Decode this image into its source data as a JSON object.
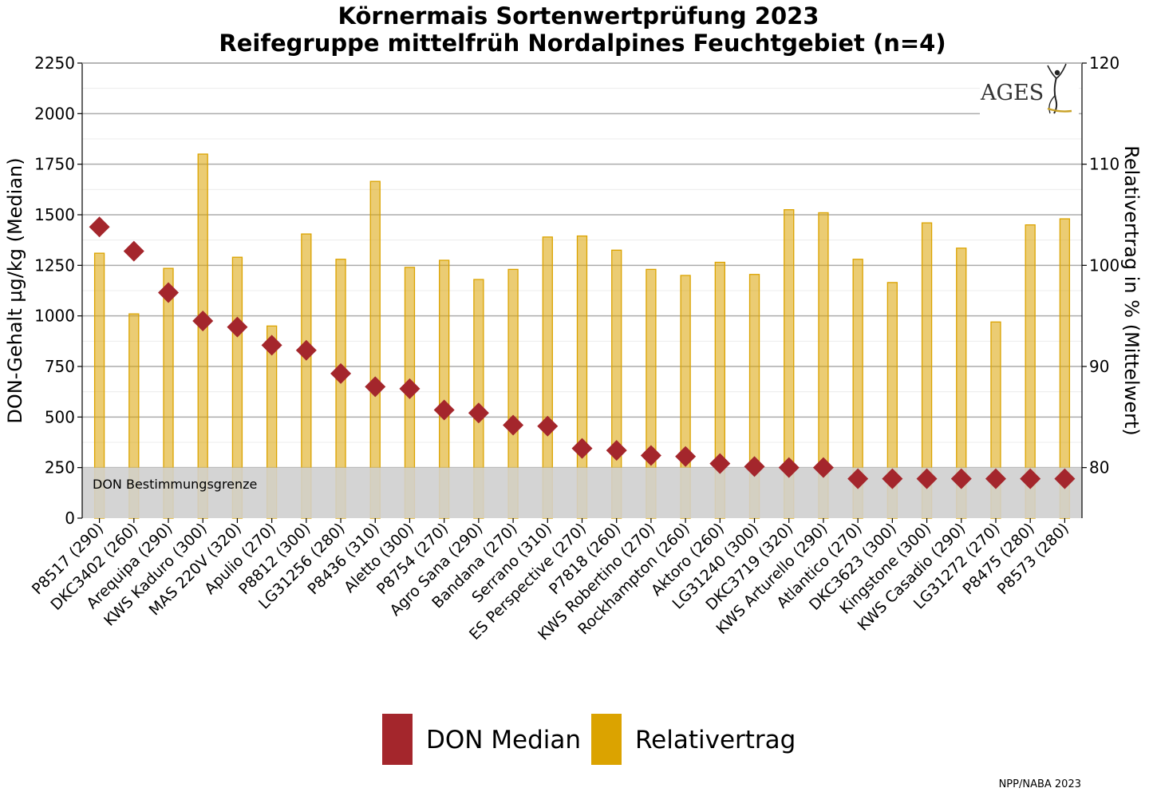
{
  "chart_data": {
    "type": "bar",
    "title": "Körnermais Sortenwertprüfung 2023",
    "subtitle": "Reifegruppe mittelfrüh Nordalpines Feuchtgebiet (n=4)",
    "ylabel": "DON-Gehalt µg/kg (Median)",
    "y2label": "Relativertrag in % (Mittelwert)",
    "ylim": [
      0,
      2250
    ],
    "y2lim": [
      75,
      120
    ],
    "yticks": [
      "0",
      "250",
      "500",
      "750",
      "1000",
      "1250",
      "1500",
      "1750",
      "2000",
      "2250"
    ],
    "y2ticks": [
      "80",
      "90",
      "100",
      "110",
      "120"
    ],
    "limit_band": {
      "label": "DON Bestimmungsgrenze",
      "value": 250
    },
    "categories": [
      "P8517 (290)",
      "DKC3402 (260)",
      "Arequipa (290)",
      "KWS Kaduro (300)",
      "MAS 220V (320)",
      "Apulio (270)",
      "P8812 (300)",
      "LG31256 (280)",
      "P8436 (310)",
      "Aletto (300)",
      "P8754 (270)",
      "Agro Sana (290)",
      "Bandana (270)",
      "Serrano (310)",
      "ES Perspective (270)",
      "P7818 (260)",
      "KWS Robertino (270)",
      "Rockhampton (260)",
      "Aktoro (260)",
      "LG31240 (300)",
      "DKC3719 (320)",
      "KWS Arturello (290)",
      "Atlantico (270)",
      "DKC3623 (300)",
      "Kingstone (300)",
      "KWS Casadio (290)",
      "LG31272 (270)",
      "P8475 (280)",
      "P8573 (280)"
    ],
    "series": [
      {
        "name": "DON Median",
        "axis": "left",
        "marker": "diamond",
        "color": "#A4262C",
        "values": [
          1440,
          1320,
          1115,
          975,
          945,
          855,
          830,
          715,
          650,
          640,
          535,
          520,
          460,
          455,
          345,
          335,
          310,
          305,
          270,
          255,
          250,
          250,
          195,
          195,
          195,
          195,
          195,
          195,
          195
        ]
      },
      {
        "name": "Relativertrag",
        "axis": "right",
        "marker": "bar",
        "color": "#DBA300",
        "values": [
          101.2,
          95.2,
          99.7,
          111.0,
          100.8,
          94.0,
          103.1,
          100.6,
          108.3,
          99.8,
          100.5,
          98.6,
          99.6,
          102.8,
          102.9,
          101.5,
          99.6,
          99.0,
          100.3,
          99.1,
          105.5,
          105.2,
          100.6,
          98.3,
          104.2,
          101.7,
          94.4,
          104.0,
          104.6
        ]
      }
    ],
    "grid": true,
    "legend_position": "bottom"
  },
  "logo": {
    "text": "AGES"
  },
  "source_note": "NPP/NABA 2023"
}
